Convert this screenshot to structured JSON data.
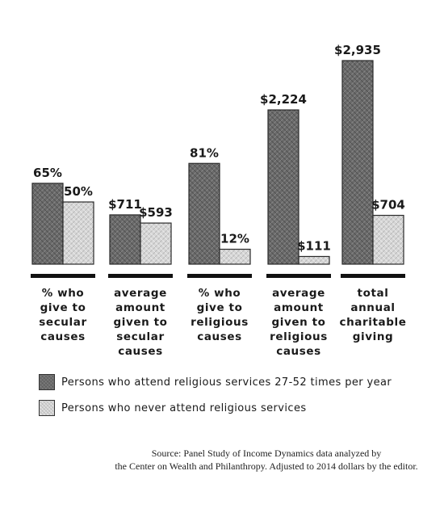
{
  "chart_data": {
    "type": "bar",
    "categories": [
      "% who\ngive to\nsecular\ncauses",
      "average\namount\ngiven to\nsecular\ncauses",
      "% who\ngive to\nreligious\ncauses",
      "average\namount\ngiven to\nreligious\ncauses",
      "total\nannual\ncharitable\ngiving"
    ],
    "series": [
      {
        "name": "Persons who attend religious services 27-52 times per year",
        "values": [
          65,
          711,
          81,
          2224,
          2935
        ],
        "labels": [
          "65%",
          "$711",
          "81%",
          "$2,224",
          "$2,935"
        ],
        "color": "#6c6c6c"
      },
      {
        "name": "Persons who never attend religious services",
        "values": [
          50,
          593,
          12,
          111,
          704
        ],
        "labels": [
          "50%",
          "$593",
          "12%",
          "$111",
          "$704"
        ],
        "color": "#d4d4d4"
      }
    ],
    "legend_position": "bottom-left",
    "grid": false
  },
  "source": {
    "line1": "Source:   Panel Study of Income Dynamics data analyzed by",
    "line2": "the Center on Wealth and Philanthropy. Adjusted to 2014 dollars by the editor."
  }
}
